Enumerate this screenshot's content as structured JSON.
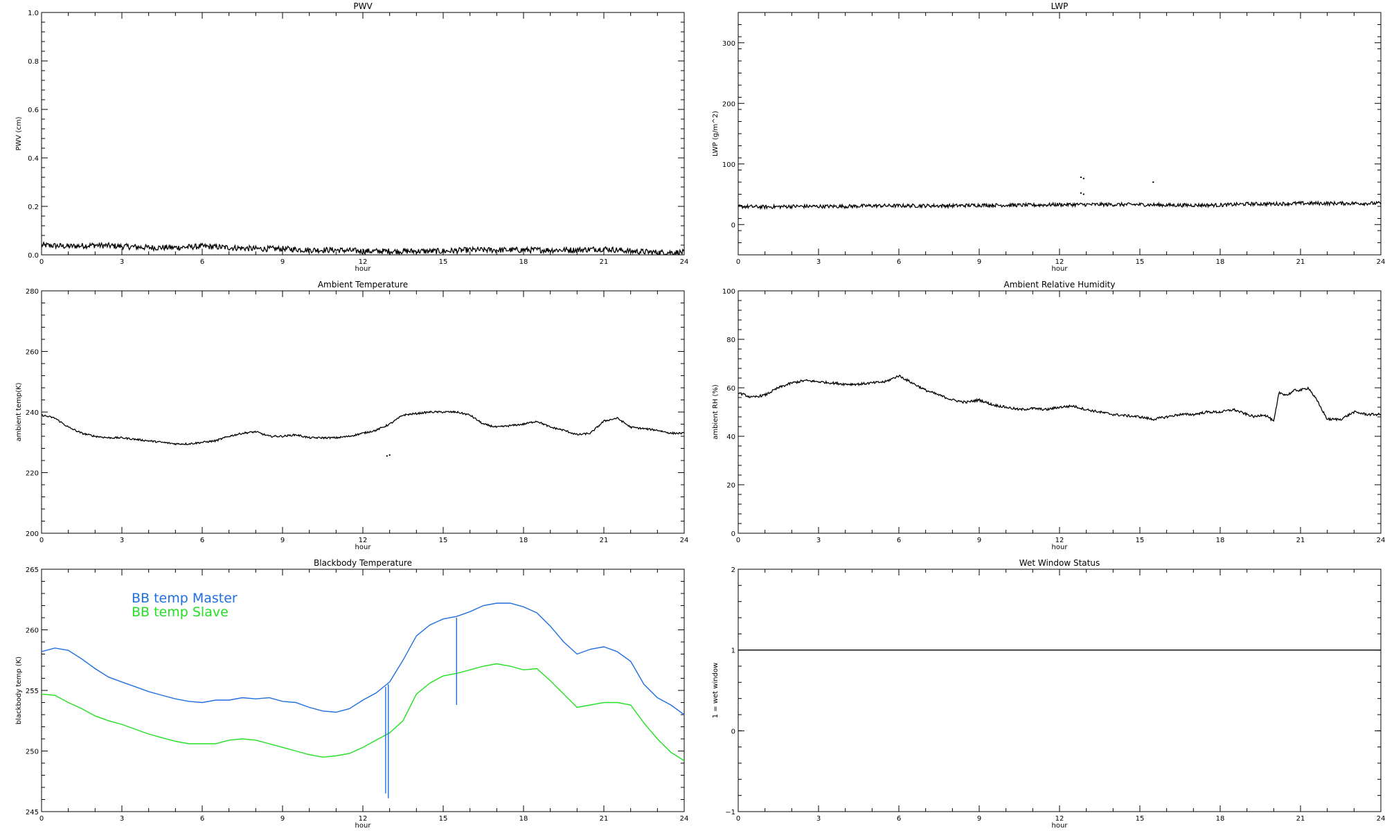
{
  "chart_data": [
    {
      "type": "line",
      "title": "PWV",
      "xlabel": "hour",
      "ylabel": "PWV (cm)",
      "xlim": [
        0,
        24
      ],
      "ylim": [
        0,
        1
      ],
      "xticks": [
        0,
        3,
        6,
        9,
        12,
        15,
        18,
        21,
        24
      ],
      "yticks": [
        0,
        0.2,
        0.4,
        0.6,
        0.8,
        1
      ],
      "ytick_labels": [
        "0.0",
        "0.2",
        "0.4",
        "0.6",
        "0.8",
        "1.0"
      ],
      "series": [
        {
          "color": "#000000",
          "noise": 0.012,
          "x": [
            0,
            1,
            2,
            3,
            4,
            5,
            6,
            7,
            8,
            9,
            10,
            11,
            12,
            13,
            14,
            15,
            16,
            17,
            18,
            19,
            20,
            21,
            22,
            23,
            24
          ],
          "y": [
            0.04,
            0.035,
            0.04,
            0.035,
            0.03,
            0.03,
            0.035,
            0.03,
            0.025,
            0.025,
            0.02,
            0.02,
            0.015,
            0.015,
            0.015,
            0.015,
            0.02,
            0.02,
            0.02,
            0.02,
            0.02,
            0.025,
            0.015,
            0.01,
            0.01
          ]
        }
      ]
    },
    {
      "type": "line",
      "title": "LWP",
      "xlabel": "hour",
      "ylabel": "LWP (g/m^2)",
      "xlim": [
        0,
        24
      ],
      "ylim": [
        -50,
        350
      ],
      "xticks": [
        0,
        3,
        6,
        9,
        12,
        15,
        18,
        21,
        24
      ],
      "yticks": [
        0,
        100,
        200,
        300
      ],
      "ytick_labels": [
        "0",
        "100",
        "200",
        "300"
      ],
      "series": [
        {
          "color": "#000000",
          "noise": 3,
          "x": [
            0,
            1,
            2,
            3,
            4,
            5,
            6,
            7,
            8,
            9,
            10,
            11,
            12,
            13,
            14,
            15,
            16,
            17,
            18,
            19,
            20,
            21,
            22,
            23,
            24
          ],
          "y": [
            30,
            29,
            30,
            30,
            30,
            31,
            31,
            31,
            31,
            32,
            32,
            32,
            33,
            33,
            33,
            33,
            32,
            32,
            32,
            34,
            34,
            35,
            35,
            35,
            35
          ]
        }
      ],
      "points": [
        {
          "x": 12.8,
          "y": 78
        },
        {
          "x": 12.9,
          "y": 76
        },
        {
          "x": 12.8,
          "y": 52
        },
        {
          "x": 12.9,
          "y": 50
        },
        {
          "x": 15.5,
          "y": 70
        }
      ]
    },
    {
      "type": "line",
      "title": "Ambient Temperature",
      "xlabel": "hour",
      "ylabel": "ambient temp(K)",
      "xlim": [
        0,
        24
      ],
      "ylim": [
        200,
        280
      ],
      "xticks": [
        0,
        3,
        6,
        9,
        12,
        15,
        18,
        21,
        24
      ],
      "yticks": [
        200,
        220,
        240,
        260,
        280
      ],
      "ytick_labels": [
        "200",
        "220",
        "240",
        "260",
        "280"
      ],
      "series": [
        {
          "color": "#000000",
          "noise": 0.3,
          "x": [
            0,
            0.5,
            1,
            1.5,
            2,
            2.5,
            3,
            3.5,
            4,
            4.5,
            5,
            5.5,
            6,
            6.5,
            7,
            7.5,
            8,
            8.5,
            9,
            9.5,
            10,
            10.5,
            11,
            11.5,
            12,
            12.5,
            13,
            13.5,
            14,
            14.5,
            15,
            15.5,
            16,
            16.5,
            17,
            17.5,
            18,
            18.5,
            19,
            19.5,
            20,
            20.5,
            21,
            21.5,
            22,
            22.5,
            23,
            23.5,
            24
          ],
          "y": [
            239,
            238,
            235,
            233,
            232,
            231.5,
            231.5,
            231,
            230.5,
            230,
            229.5,
            229.5,
            230,
            230.5,
            232,
            233,
            233.5,
            232,
            232,
            232.5,
            231.5,
            231.5,
            231.5,
            232,
            233,
            234,
            236,
            239,
            239.5,
            240,
            240,
            240,
            239,
            236,
            235,
            235.5,
            236,
            237,
            235,
            234,
            232.5,
            233,
            237,
            238,
            235,
            234.5,
            234,
            233,
            233
          ]
        }
      ],
      "points": [
        {
          "x": 12.9,
          "y": 225.5
        },
        {
          "x": 13.0,
          "y": 225.8
        }
      ]
    },
    {
      "type": "line",
      "title": "Ambient Relative Humidity",
      "xlabel": "hour",
      "ylabel": "ambient RH (%)",
      "xlim": [
        0,
        24
      ],
      "ylim": [
        0,
        100
      ],
      "xticks": [
        0,
        3,
        6,
        9,
        12,
        15,
        18,
        21,
        24
      ],
      "yticks": [
        0,
        20,
        40,
        60,
        80,
        100
      ],
      "ytick_labels": [
        "0",
        "20",
        "40",
        "60",
        "80",
        "100"
      ],
      "series": [
        {
          "color": "#000000",
          "noise": 0.5,
          "x": [
            0,
            0.5,
            1,
            1.5,
            2,
            2.5,
            3,
            3.5,
            4,
            4.5,
            5,
            5.5,
            6,
            6.5,
            7,
            7.5,
            8,
            8.5,
            9,
            9.5,
            10,
            10.5,
            11,
            11.5,
            12,
            12.5,
            13,
            13.5,
            14,
            14.5,
            15,
            15.5,
            16,
            16.5,
            17,
            17.5,
            18,
            18.5,
            19,
            19.3,
            19.6,
            19.8,
            20,
            20.2,
            20.5,
            20.8,
            21,
            21.3,
            21.6,
            22,
            22.5,
            23,
            23.5,
            24
          ],
          "y": [
            58,
            56,
            57,
            60,
            62,
            63,
            62.5,
            62,
            61.5,
            61.5,
            62,
            62.5,
            65,
            62,
            59,
            57,
            55,
            54,
            55,
            53,
            52,
            51,
            51.5,
            51,
            52,
            52.5,
            51,
            50,
            49,
            48.5,
            48,
            47,
            48,
            49,
            49,
            50,
            50,
            51,
            49,
            48,
            49,
            48,
            46,
            58,
            57,
            59,
            59,
            60,
            55,
            47,
            47,
            50,
            49,
            49
          ]
        }
      ]
    },
    {
      "type": "line",
      "title": "Blackbody Temperature",
      "xlabel": "hour",
      "ylabel": "blackbody temp (K)",
      "xlim": [
        0,
        24
      ],
      "ylim": [
        245,
        265
      ],
      "xticks": [
        0,
        3,
        6,
        9,
        12,
        15,
        18,
        21,
        24
      ],
      "yticks": [
        245,
        250,
        255,
        260,
        265
      ],
      "ytick_labels": [
        "245",
        "250",
        "255",
        "260",
        "265"
      ],
      "legend_position": "top-left",
      "series": [
        {
          "name": "BB temp Master",
          "color": "#1f6fe0",
          "noise": 0,
          "x": [
            0,
            0.5,
            1,
            1.5,
            2,
            2.5,
            3,
            3.5,
            4,
            4.5,
            5,
            5.5,
            6,
            6.5,
            7,
            7.5,
            8,
            8.5,
            9,
            9.5,
            10,
            10.5,
            11,
            11.5,
            12,
            12.5,
            13,
            13.5,
            14,
            14.5,
            15,
            15.5,
            16,
            16.5,
            17,
            17.5,
            18,
            18.5,
            19,
            19.5,
            20,
            20.5,
            21,
            21.5,
            22,
            22.5,
            23,
            23.5,
            24
          ],
          "y": [
            258.2,
            258.5,
            258.3,
            257.6,
            256.8,
            256.1,
            255.7,
            255.3,
            254.9,
            254.6,
            254.3,
            254.1,
            254.0,
            254.2,
            254.2,
            254.4,
            254.3,
            254.4,
            254.1,
            254.0,
            253.6,
            253.3,
            253.2,
            253.5,
            254.2,
            254.8,
            255.7,
            257.5,
            259.5,
            260.4,
            260.9,
            261.1,
            261.5,
            262.0,
            262.2,
            262.2,
            261.9,
            261.4,
            260.3,
            259.0,
            258.0,
            258.4,
            258.6,
            258.2,
            257.4,
            255.5,
            254.4,
            253.8,
            253.0
          ]
        },
        {
          "name": "BB temp Slave",
          "color": "#22e022",
          "noise": 0,
          "x": [
            0,
            0.5,
            1,
            1.5,
            2,
            2.5,
            3,
            3.5,
            4,
            4.5,
            5,
            5.5,
            6,
            6.5,
            7,
            7.5,
            8,
            8.5,
            9,
            9.5,
            10,
            10.5,
            11,
            11.5,
            12,
            12.5,
            13,
            13.5,
            14,
            14.5,
            15,
            15.5,
            16,
            16.5,
            17,
            17.5,
            18,
            18.5,
            19,
            19.5,
            20,
            20.5,
            21,
            21.5,
            22,
            22.5,
            23,
            23.5,
            24
          ],
          "y": [
            254.7,
            254.6,
            254.0,
            253.5,
            252.9,
            252.5,
            252.2,
            251.8,
            251.4,
            251.1,
            250.8,
            250.6,
            250.6,
            250.6,
            250.9,
            251.0,
            250.9,
            250.6,
            250.3,
            250.0,
            249.7,
            249.5,
            249.6,
            249.8,
            250.3,
            250.9,
            251.5,
            252.5,
            254.7,
            255.6,
            256.2,
            256.4,
            256.7,
            257.0,
            257.2,
            257.0,
            256.7,
            256.8,
            255.8,
            254.7,
            253.6,
            253.8,
            254.0,
            254.0,
            253.8,
            252.3,
            251.0,
            249.9,
            249.2
          ]
        }
      ],
      "spikes": [
        {
          "x": 12.85,
          "y_from": 255.3,
          "y_to": 246.5,
          "color": "#1f6fe0"
        },
        {
          "x": 12.95,
          "y_from": 255.5,
          "y_to": 246.1,
          "color": "#1f6fe0"
        },
        {
          "x": 15.5,
          "y_from": 261.0,
          "y_to": 253.8,
          "color": "#1f6fe0"
        }
      ]
    },
    {
      "type": "line",
      "title": "Wet Window Status",
      "xlabel": "hour",
      "ylabel": "1 = wet window",
      "xlim": [
        0,
        24
      ],
      "ylim": [
        -1,
        2
      ],
      "xticks": [
        0,
        3,
        6,
        9,
        12,
        15,
        18,
        21,
        24
      ],
      "yticks": [
        -1,
        0,
        1,
        2
      ],
      "ytick_labels": [
        "−1",
        "0",
        "1",
        "2"
      ],
      "series": [
        {
          "color": "#000000",
          "noise": 0,
          "x": [
            0,
            24
          ],
          "y": [
            1,
            1
          ]
        }
      ]
    }
  ]
}
